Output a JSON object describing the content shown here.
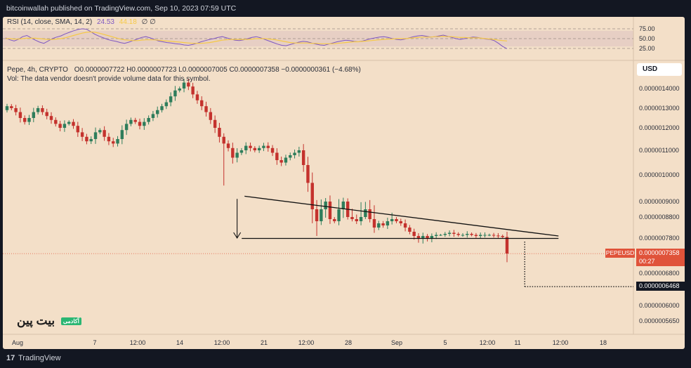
{
  "publisher": "bitcoinwallah published on TradingView.com, Sep 10, 2023 07:59 UTC",
  "footer": {
    "logo": "17",
    "brand": "TradingView"
  },
  "rsi_legend": {
    "label": "RSI (14, close, SMA, 14, 2)",
    "value1": "24.53",
    "value2": "44.18",
    "extra": "∅  ∅"
  },
  "main_legend": {
    "symbol": "Pepe, 4h, CRYPTO",
    "ohlc": "O0.0000007722  H0.0000007723  L0.0000007005  C0.0000007358  −0.0000000361 (−4.68%)",
    "vol_note": "Vol: The data vendor doesn't provide volume data for this symbol."
  },
  "currency": "USD",
  "watermark": {
    "text": "بیت پین",
    "badge": "آکادمی"
  },
  "last_price": {
    "ticker": "PEPEUSD",
    "price": "0.0000007358",
    "countdown": "00:27"
  },
  "target_label": "0.0000006468",
  "colors": {
    "panel_bg": "#f3dfc8",
    "rsi_band": "#e7cfc4",
    "rsi_line": "#7e57c2",
    "rsi_sma": "#f6c945",
    "up": "#2e7d5b",
    "down": "#c4322d",
    "last_price": "#e0533a"
  },
  "chart_data": [
    {
      "type": "line",
      "title": "RSI (14, close, SMA, 14, 2)",
      "ylim": [
        0,
        100
      ],
      "y_ticks": [
        "75.00",
        "50.00",
        "25.00"
      ],
      "y_tick_values": [
        75,
        50,
        25
      ],
      "band": [
        30,
        70
      ],
      "series": [
        {
          "name": "RSI",
          "values": [
            52,
            47,
            44,
            48,
            55,
            58,
            52,
            46,
            41,
            38,
            44,
            50,
            54,
            57,
            62,
            66,
            70,
            73,
            75,
            74,
            68,
            61,
            56,
            52,
            48,
            45,
            43,
            40,
            38,
            41,
            45,
            49,
            53,
            55,
            52,
            48,
            44,
            42,
            40,
            39,
            37,
            36,
            34,
            33,
            35,
            38,
            42,
            45,
            48,
            50,
            53,
            55,
            52,
            49,
            46,
            45,
            47,
            50,
            53,
            55,
            52,
            48,
            44,
            40,
            36,
            33,
            32,
            35,
            38,
            41,
            43,
            42,
            39,
            36,
            34,
            33,
            36,
            39,
            42,
            44,
            46,
            45,
            43,
            42,
            44,
            47,
            50,
            52,
            54,
            55,
            53,
            50,
            48,
            47,
            49,
            52,
            55,
            57,
            58,
            56,
            54,
            55,
            57,
            59,
            56,
            53,
            50,
            48,
            50,
            52,
            54,
            53,
            51,
            49,
            48,
            45,
            38,
            30,
            24.53
          ]
        },
        {
          "name": "SMA",
          "values": [
            50,
            50,
            49,
            49,
            50,
            51,
            51,
            51,
            50,
            49,
            48,
            48,
            49,
            50,
            52,
            55,
            58,
            61,
            64,
            66,
            67,
            66,
            64,
            61,
            58,
            55,
            52,
            49,
            47,
            46,
            45,
            45,
            46,
            47,
            47,
            47,
            46,
            45,
            44,
            43,
            42,
            41,
            40,
            39,
            38,
            38,
            38,
            39,
            40,
            42,
            44,
            46,
            47,
            48,
            48,
            48,
            48,
            48,
            49,
            50,
            50,
            50,
            49,
            48,
            46,
            44,
            42,
            40,
            39,
            39,
            39,
            39,
            38,
            38,
            37,
            37,
            37,
            37,
            38,
            39,
            40,
            41,
            42,
            42,
            43,
            44,
            45,
            46,
            47,
            48,
            49,
            49,
            50,
            50,
            50,
            51,
            52,
            53,
            54,
            54,
            54,
            55,
            55,
            56,
            55,
            55,
            54,
            53,
            53,
            52,
            52,
            52,
            51,
            50,
            49,
            48,
            46,
            45,
            44.18
          ]
        }
      ]
    },
    {
      "type": "candlestick",
      "title": "Pepe, 4h, CRYPTO",
      "ylabel": "USD",
      "x_ticks": [
        "Aug",
        "7",
        "12:00",
        "14",
        "12:00",
        "21",
        "12:00",
        "28",
        "Sep",
        "5",
        "12:00",
        "11",
        "12:00",
        "18"
      ],
      "y_ticks": [
        "0.0000014000",
        "0.0000013000",
        "0.0000012000",
        "0.0000011000",
        "0.0000010000",
        "0.0000009000",
        "0.0000008800",
        "0.0000007800",
        "0.0000006800",
        "0.0000006000",
        "0.0000005650"
      ],
      "y_tick_values": [
        14.0,
        13.0,
        12.0,
        11.0,
        10.0,
        9.0,
        8.8,
        7.8,
        6.8,
        6.0,
        5.65
      ],
      "y_tick_note": "tick values in 1e-7 USD; axis is non-linear as printed",
      "closes": [
        13.1,
        13.0,
        12.8,
        12.5,
        12.3,
        12.5,
        12.8,
        13.0,
        12.8,
        12.6,
        12.4,
        12.2,
        12.0,
        12.2,
        12.3,
        12.1,
        11.8,
        11.6,
        11.4,
        11.5,
        11.8,
        11.9,
        11.6,
        11.4,
        11.3,
        11.5,
        11.9,
        12.2,
        12.4,
        12.3,
        12.1,
        12.3,
        12.5,
        12.7,
        12.9,
        13.1,
        13.3,
        13.6,
        13.9,
        14.0,
        14.3,
        14.1,
        13.7,
        13.4,
        13.1,
        12.8,
        12.4,
        12.0,
        11.6,
        11.3,
        11.1,
        10.7,
        10.9,
        11.0,
        11.2,
        11.1,
        11.0,
        11.1,
        11.2,
        11.1,
        10.9,
        10.6,
        10.5,
        10.7,
        10.8,
        10.9,
        11.0,
        10.4,
        9.7,
        8.9,
        8.6,
        8.9,
        9.0,
        8.7,
        8.6,
        8.9,
        9.0,
        8.8,
        8.7,
        8.6,
        8.8,
        8.9,
        8.7,
        8.3,
        8.5,
        8.4,
        8.6,
        8.7,
        8.6,
        8.5,
        8.3,
        8.1,
        7.9,
        7.8,
        7.9,
        7.8,
        7.9,
        7.95,
        7.95,
        8.0,
        8.05,
        8.0,
        7.95,
        7.95,
        8.0,
        7.95,
        7.9,
        7.95,
        7.95,
        7.95,
        7.92,
        7.9,
        7.85,
        7.36
      ],
      "annotations": {
        "triangle": {
          "upper_start": [
            54,
            9.2
          ],
          "upper_end": [
            124,
            7.9
          ],
          "lower": [
            7.79,
            7.79
          ],
          "start_index": 54,
          "end_index": 124
        },
        "measured_move_arrow": {
          "from": 9.1,
          "to": 7.8,
          "at_index": 52
        },
        "projection": {
          "from": 7.7,
          "to": 6.468,
          "at_index": 117
        }
      }
    }
  ]
}
